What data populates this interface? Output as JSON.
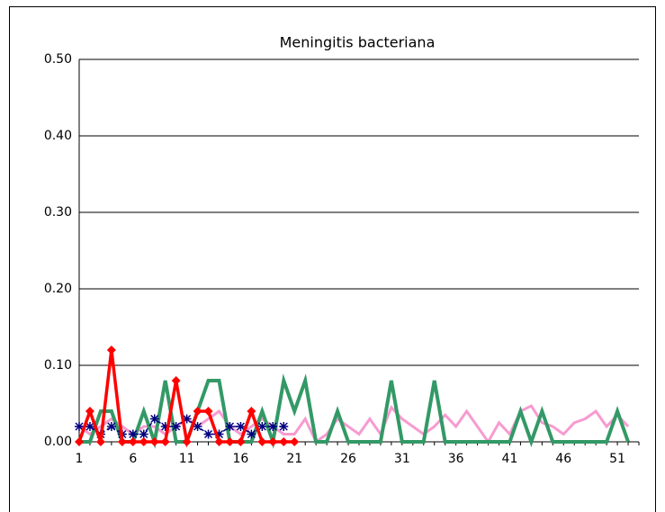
{
  "chart_data": {
    "type": "line",
    "title": "Meningitis bacteriana",
    "categories": [
      1,
      null,
      null,
      null,
      null,
      6,
      null,
      null,
      null,
      null,
      11,
      null,
      null,
      null,
      null,
      16,
      null,
      null,
      null,
      null,
      21,
      null,
      null,
      null,
      null,
      26,
      null,
      null,
      null,
      null,
      31,
      null,
      null,
      null,
      null,
      36,
      null,
      null,
      null,
      null,
      41,
      null,
      null,
      null,
      null,
      46,
      null,
      null,
      null,
      null,
      51,
      null,
      null
    ],
    "series": [
      {
        "color": "#f79bd0",
        "width": 3,
        "values": [
          0.02,
          0.01,
          0.02,
          0.03,
          0.02,
          0.01,
          0.02,
          0.02,
          0.01,
          0.02,
          0.03,
          0.02,
          0.03,
          0.04,
          0.02,
          0.01,
          0.02,
          0.03,
          0.02,
          0.01,
          0.01,
          0.03,
          0,
          0.01,
          0.03,
          0.02,
          0.01,
          0.03,
          0.01,
          0.045,
          0.03,
          0.02,
          0.01,
          0.02,
          0.035,
          0.02,
          0.04,
          0.02,
          0,
          0.025,
          0.01,
          0.04,
          0.047,
          0.025,
          0.02,
          0.01,
          0.025,
          0.03,
          0.04,
          0.02,
          0.035,
          0.02,
          null
        ]
      },
      {
        "color": "#339966",
        "width": 4,
        "values": [
          0,
          0,
          0.04,
          0.04,
          0,
          0,
          0.04,
          0,
          0.08,
          0,
          0,
          0.04,
          0.08,
          0.08,
          0,
          0,
          0,
          0.04,
          0,
          0.08,
          0.04,
          0.08,
          0,
          0,
          0.04,
          0,
          0,
          0,
          0,
          0.08,
          0,
          0,
          0,
          0.08,
          0,
          0,
          0,
          0,
          0,
          0,
          0,
          0.04,
          0,
          0.04,
          0,
          0,
          0,
          0,
          0,
          0,
          0.04,
          0,
          null
        ]
      },
      {
        "color": "#000080",
        "width": 1.5,
        "marker": "star",
        "dashed": true,
        "values": [
          0.02,
          0.02,
          0.01,
          0.02,
          0.01,
          0.01,
          0.01,
          0.03,
          0.02,
          0.02,
          0.03,
          0.02,
          0.01,
          0.01,
          0.02,
          0.02,
          0.01,
          0.02,
          0.02,
          0.02,
          null,
          null,
          null,
          null,
          null,
          null,
          null,
          null,
          null,
          null,
          null,
          null,
          null,
          null,
          null,
          null,
          null,
          null,
          null,
          null,
          null,
          null,
          null,
          null,
          null,
          null,
          null,
          null,
          null,
          null,
          null,
          null,
          null
        ]
      },
      {
        "color": "#ff0000",
        "width": 3.5,
        "marker": "diamond",
        "values": [
          0,
          0.04,
          0,
          0.12,
          0,
          0,
          0,
          0,
          0,
          0.08,
          0,
          0.04,
          0.04,
          0,
          0,
          0,
          0.04,
          0,
          0,
          0,
          0,
          null,
          null,
          null,
          null,
          null,
          null,
          null,
          null,
          null,
          null,
          null,
          null,
          null,
          null,
          null,
          null,
          null,
          null,
          null,
          null,
          null,
          null,
          null,
          null,
          null,
          null,
          null,
          null,
          null,
          null,
          null,
          null
        ]
      }
    ],
    "ylim": [
      0,
      0.5
    ],
    "yticks": [
      {
        "value": 0,
        "label": "0.00"
      },
      {
        "value": 0.1,
        "label": "0.10"
      },
      {
        "value": 0.2,
        "label": "0.20"
      },
      {
        "value": 0.3,
        "label": "0.30"
      },
      {
        "value": 0.4,
        "label": "0.40"
      },
      {
        "value": 0.5,
        "label": "0.50"
      }
    ],
    "grid": true
  }
}
